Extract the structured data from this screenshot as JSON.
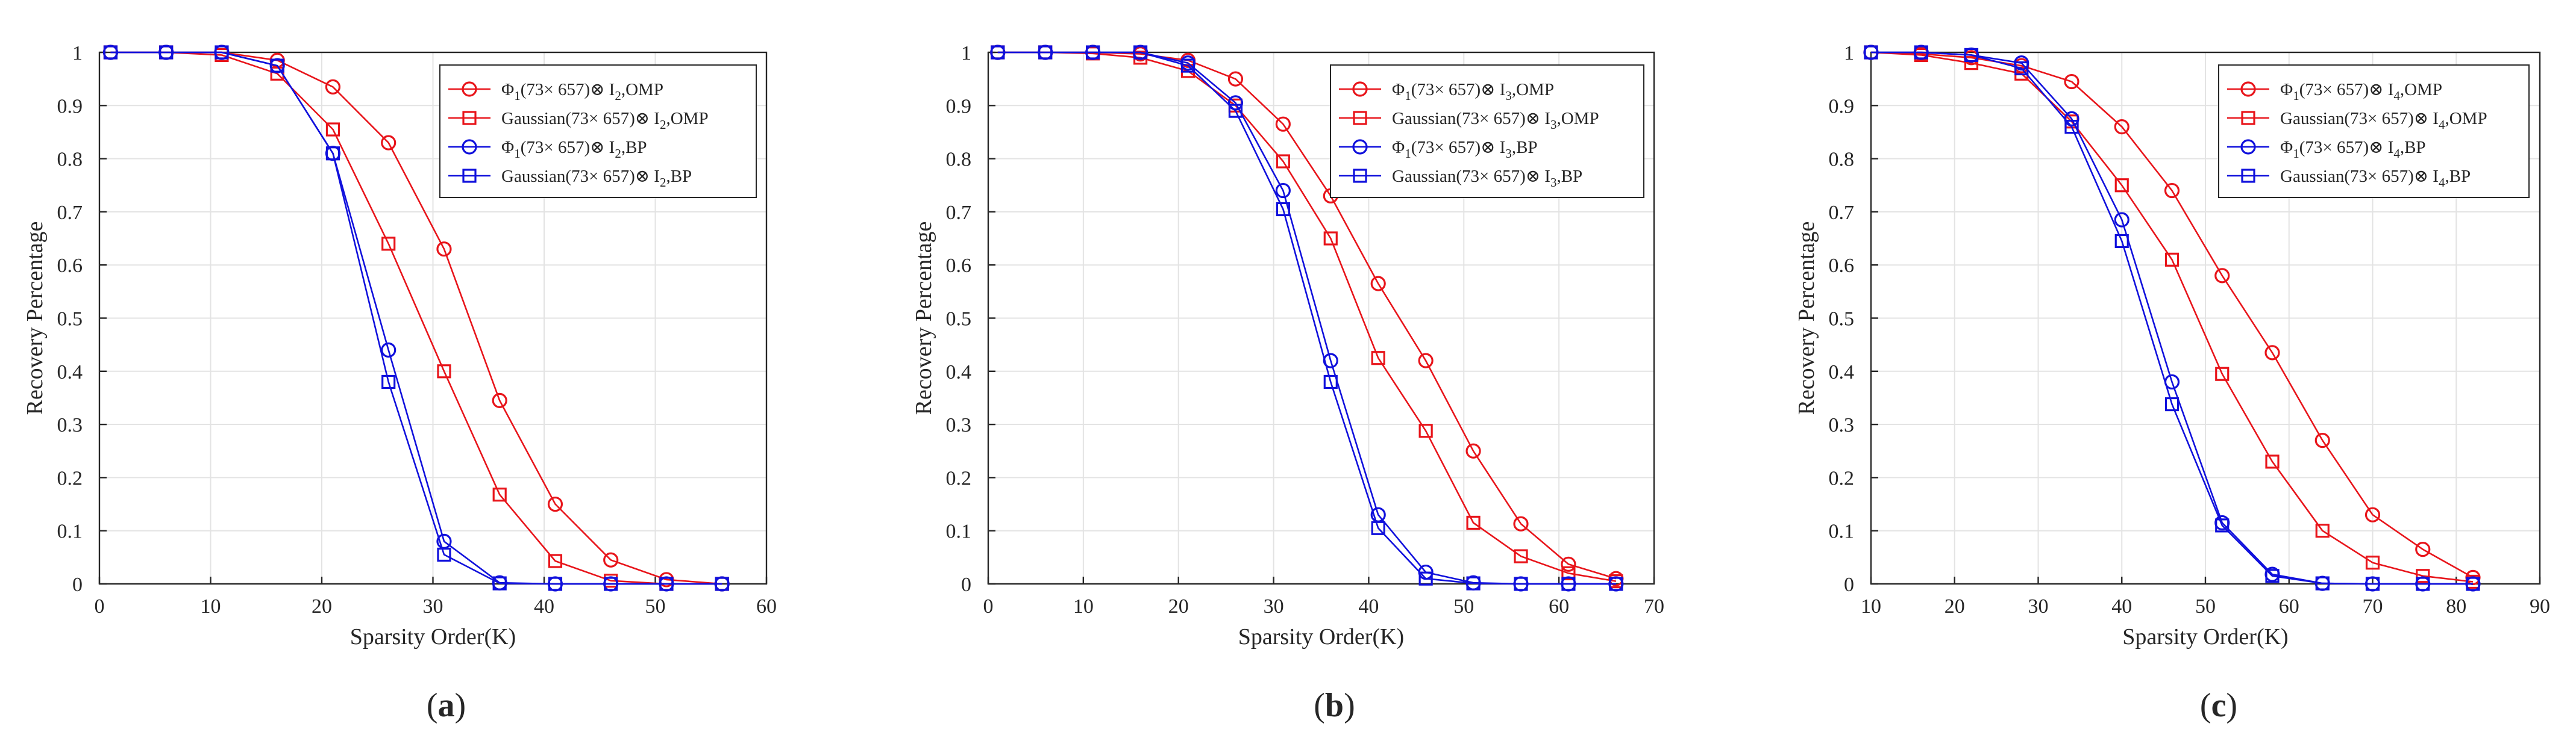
{
  "figure": {
    "panels": [
      "(a)",
      "(b)",
      "(c)"
    ]
  },
  "colors": {
    "omp": "#e8141a",
    "bp": "#1010dc",
    "grid": "#e3e3e3",
    "axis": "#262626"
  },
  "chart_data": [
    {
      "type": "line",
      "panel_label": "(a)",
      "xlabel": "Sparsity Order(K)",
      "ylabel": "Recovery Percentage",
      "xlim": [
        0,
        60
      ],
      "ylim": [
        0,
        1
      ],
      "xticks": [
        0,
        10,
        20,
        30,
        40,
        50,
        60
      ],
      "yticks": [
        0,
        0.1,
        0.2,
        0.3,
        0.4,
        0.5,
        0.6,
        0.7,
        0.8,
        0.9,
        1
      ],
      "grid": true,
      "legend_position": "top-right",
      "series": [
        {
          "name": "Φ1(73× 657)⊗ I2,OMP",
          "legend_parts": [
            "Φ",
            "1",
            "(73× 657)⊗ I",
            "2",
            ",OMP"
          ],
          "color": "omp",
          "marker": "circle",
          "x": [
            1,
            6,
            11,
            16,
            21,
            26,
            31,
            36,
            41,
            46,
            51,
            56
          ],
          "y": [
            1,
            1,
            1,
            0.985,
            0.935,
            0.83,
            0.63,
            0.345,
            0.15,
            0.045,
            0.008,
            0
          ]
        },
        {
          "name": "Gaussian(73× 657)⊗ I2,OMP",
          "legend_parts": [
            "Gaussian",
            "",
            "(73× 657)⊗ I",
            "2",
            ",OMP"
          ],
          "color": "omp",
          "marker": "square",
          "x": [
            1,
            6,
            11,
            16,
            21,
            26,
            31,
            36,
            41,
            46,
            51,
            56
          ],
          "y": [
            1,
            1,
            0.995,
            0.96,
            0.855,
            0.64,
            0.4,
            0.168,
            0.043,
            0.006,
            0,
            0
          ]
        },
        {
          "name": "Φ1(73× 657)⊗ I2,BP",
          "legend_parts": [
            "Φ",
            "1",
            "(73× 657)⊗ I",
            "2",
            ",BP"
          ],
          "color": "bp",
          "marker": "circle",
          "x": [
            1,
            6,
            11,
            16,
            21,
            26,
            31,
            36,
            41,
            46,
            51,
            56
          ],
          "y": [
            1,
            1,
            1,
            0.975,
            0.81,
            0.44,
            0.08,
            0.002,
            0,
            0,
            0,
            0
          ]
        },
        {
          "name": "Gaussian(73× 657)⊗ I2,BP",
          "legend_parts": [
            "Gaussian",
            "",
            "(73× 657)⊗ I",
            "2",
            ",BP"
          ],
          "color": "bp",
          "marker": "square",
          "x": [
            1,
            6,
            11,
            16,
            21,
            26,
            31,
            36,
            41,
            46,
            51,
            56
          ],
          "y": [
            1,
            1,
            1,
            0.975,
            0.81,
            0.38,
            0.055,
            0.001,
            0,
            0,
            0,
            0
          ]
        }
      ]
    },
    {
      "type": "line",
      "panel_label": "(b)",
      "xlabel": "Sparsity Order(K)",
      "ylabel": "Recovery Percentage",
      "xlim": [
        0,
        70
      ],
      "ylim": [
        0,
        1
      ],
      "xticks": [
        0,
        10,
        20,
        30,
        40,
        50,
        60,
        70
      ],
      "yticks": [
        0,
        0.1,
        0.2,
        0.3,
        0.4,
        0.5,
        0.6,
        0.7,
        0.8,
        0.9,
        1
      ],
      "grid": true,
      "legend_position": "top-right",
      "series": [
        {
          "name": "Φ1(73× 657)⊗ I3,OMP",
          "legend_parts": [
            "Φ",
            "1",
            "(73× 657)⊗ I",
            "3",
            ",OMP"
          ],
          "color": "omp",
          "marker": "circle",
          "x": [
            1,
            6,
            11,
            16,
            21,
            26,
            31,
            36,
            41,
            46,
            51,
            56,
            61,
            66
          ],
          "y": [
            1,
            1,
            1,
            0.997,
            0.985,
            0.95,
            0.865,
            0.73,
            0.565,
            0.42,
            0.25,
            0.113,
            0.037,
            0.01
          ]
        },
        {
          "name": "Gaussian(73× 657)⊗ I3,OMP",
          "legend_parts": [
            "Gaussian",
            "",
            "(73× 657)⊗ I",
            "3",
            ",OMP"
          ],
          "color": "omp",
          "marker": "square",
          "x": [
            1,
            6,
            11,
            16,
            21,
            26,
            31,
            36,
            41,
            46,
            51,
            56,
            61,
            66
          ],
          "y": [
            1,
            1,
            0.998,
            0.99,
            0.965,
            0.9,
            0.795,
            0.65,
            0.425,
            0.288,
            0.115,
            0.052,
            0.02,
            0.005
          ]
        },
        {
          "name": "Φ1(73× 657)⊗ I3,BP",
          "legend_parts": [
            "Φ",
            "1",
            "(73× 657)⊗ I",
            "3",
            ",BP"
          ],
          "color": "bp",
          "marker": "circle",
          "x": [
            1,
            6,
            11,
            16,
            21,
            26,
            31,
            36,
            41,
            46,
            51,
            56,
            61,
            66
          ],
          "y": [
            1,
            1,
            1,
            1,
            0.98,
            0.905,
            0.74,
            0.42,
            0.13,
            0.022,
            0.002,
            0,
            0,
            0
          ]
        },
        {
          "name": "Gaussian(73× 657)⊗ I3,BP",
          "legend_parts": [
            "Gaussian",
            "",
            "(73× 657)⊗ I",
            "3",
            ",BP"
          ],
          "color": "bp",
          "marker": "square",
          "x": [
            1,
            6,
            11,
            16,
            21,
            26,
            31,
            36,
            41,
            46,
            51,
            56,
            61,
            66
          ],
          "y": [
            1,
            1,
            1,
            1,
            0.975,
            0.89,
            0.705,
            0.38,
            0.105,
            0.01,
            0.001,
            0,
            0,
            0
          ]
        }
      ]
    },
    {
      "type": "line",
      "panel_label": "(c)",
      "xlabel": "Sparsity Order(K)",
      "ylabel": "Recovery Percentage",
      "xlim": [
        10,
        90
      ],
      "ylim": [
        0,
        1
      ],
      "xticks": [
        10,
        20,
        30,
        40,
        50,
        60,
        70,
        80,
        90
      ],
      "yticks": [
        0,
        0.1,
        0.2,
        0.3,
        0.4,
        0.5,
        0.6,
        0.7,
        0.8,
        0.9,
        1
      ],
      "grid": true,
      "legend_position": "top-right",
      "series": [
        {
          "name": "Φ1(73× 657)⊗ I4,OMP",
          "legend_parts": [
            "Φ",
            "1",
            "(73× 657)⊗ I",
            "4",
            ",OMP"
          ],
          "color": "omp",
          "marker": "circle",
          "x": [
            10,
            16,
            22,
            28,
            34,
            40,
            46,
            52,
            58,
            64,
            70,
            76,
            82
          ],
          "y": [
            1,
            0.997,
            0.99,
            0.975,
            0.945,
            0.86,
            0.74,
            0.58,
            0.435,
            0.27,
            0.13,
            0.065,
            0.012
          ]
        },
        {
          "name": "Gaussian(73× 657)⊗ I4,OMP",
          "legend_parts": [
            "Gaussian",
            "",
            "(73× 657)⊗ I",
            "4",
            ",OMP"
          ],
          "color": "omp",
          "marker": "square",
          "x": [
            10,
            16,
            22,
            28,
            34,
            40,
            46,
            52,
            58,
            64,
            70,
            76,
            82
          ],
          "y": [
            1,
            0.995,
            0.98,
            0.96,
            0.87,
            0.75,
            0.61,
            0.395,
            0.23,
            0.1,
            0.04,
            0.015,
            0.004
          ]
        },
        {
          "name": "Φ1(73× 657)⊗ I4,BP",
          "legend_parts": [
            "Φ",
            "1",
            "(73× 657)⊗ I",
            "4",
            ",BP"
          ],
          "color": "bp",
          "marker": "circle",
          "x": [
            10,
            16,
            22,
            28,
            34,
            40,
            46,
            52,
            58,
            64,
            70,
            76,
            82
          ],
          "y": [
            1,
            1,
            0.995,
            0.98,
            0.875,
            0.685,
            0.38,
            0.115,
            0.018,
            0.001,
            0,
            0,
            0
          ]
        },
        {
          "name": "Gaussian(73× 657)⊗ I4,BP",
          "legend_parts": [
            "Gaussian",
            "",
            "(73× 657)⊗ I",
            "4",
            ",BP"
          ],
          "color": "bp",
          "marker": "square",
          "x": [
            10,
            16,
            22,
            28,
            34,
            40,
            46,
            52,
            58,
            64,
            70,
            76,
            82
          ],
          "y": [
            1,
            1,
            0.995,
            0.97,
            0.86,
            0.645,
            0.338,
            0.11,
            0.015,
            0.001,
            0,
            0,
            0
          ]
        }
      ]
    }
  ]
}
